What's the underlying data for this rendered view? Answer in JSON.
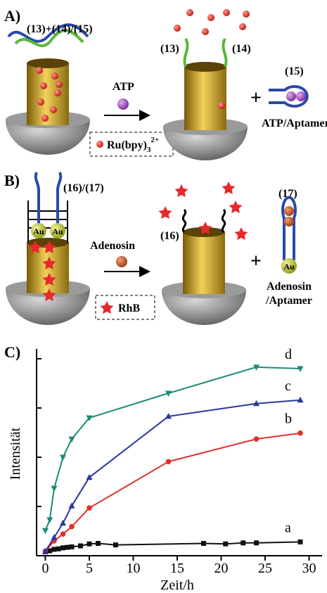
{
  "panel_a": {
    "label": "A)",
    "strands": "(13)+(14)/(15)",
    "reagent": "ATP",
    "cargo": [
      "Ru(bpy)",
      "3",
      "2+"
    ],
    "strand_left": "(13)",
    "strand_right": "(14)",
    "plus": "+",
    "complex_id": "(15)",
    "complex": "ATP/Aptamer"
  },
  "panel_b": {
    "label": "B)",
    "strands": "(16)/(17)",
    "gold": "Au",
    "reagent": "Adenosin",
    "cargo": "RhB",
    "strand_left": "(16)",
    "plus": "+",
    "complex_id": "(17)",
    "complex": [
      "Adenosin",
      "/Aptamer"
    ]
  },
  "panel_c": {
    "label": "C)"
  },
  "chart_data": {
    "type": "line",
    "x_label": "Zeit/h",
    "y_label": "Intensität",
    "xlim": [
      -1,
      31
    ],
    "xticks": [
      0,
      5,
      10,
      15,
      20,
      25,
      30
    ],
    "ylim": [
      0,
      4.2
    ],
    "yticks": [
      1,
      2,
      3,
      4
    ],
    "series": [
      {
        "name": "a",
        "color": "#111111",
        "marker": "square",
        "x": [
          0,
          0.5,
          1,
          1.5,
          2,
          2.5,
          3,
          4,
          5,
          6,
          8,
          18,
          20.5,
          22.5,
          24,
          29
        ],
        "values": [
          0.08,
          0.1,
          0.13,
          0.14,
          0.16,
          0.17,
          0.18,
          0.2,
          0.24,
          0.25,
          0.22,
          0.25,
          0.24,
          0.26,
          0.26,
          0.28
        ]
      },
      {
        "name": "b",
        "color": "#e0302c",
        "marker": "circle",
        "x": [
          0,
          1,
          2,
          3,
          5,
          14,
          24,
          29
        ],
        "values": [
          0.09,
          0.3,
          0.44,
          0.59,
          0.97,
          1.91,
          2.37,
          2.49
        ]
      },
      {
        "name": "c",
        "color": "#28389a",
        "marker": "triangle",
        "x": [
          0,
          1,
          2,
          3,
          5,
          14,
          24,
          29
        ],
        "values": [
          0.09,
          0.37,
          0.66,
          1.01,
          1.59,
          2.83,
          3.09,
          3.16
        ]
      },
      {
        "name": "d",
        "color": "#1e8a78",
        "marker": "triangle-down",
        "x": [
          0,
          0.5,
          1,
          2,
          3,
          5,
          14,
          24,
          29
        ],
        "values": [
          0.51,
          0.73,
          1.37,
          2.0,
          2.37,
          2.8,
          3.3,
          3.83,
          3.8
        ]
      }
    ]
  }
}
